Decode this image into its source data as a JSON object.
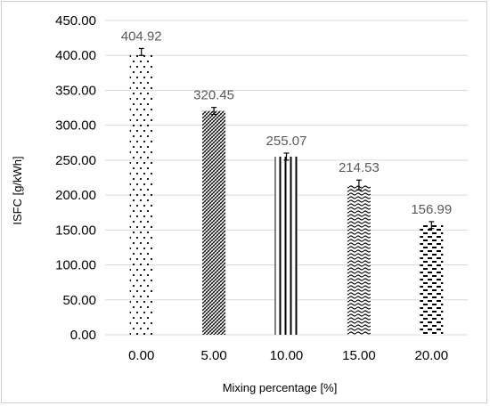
{
  "chart_data": {
    "type": "bar",
    "categories": [
      "0.00",
      "5.00",
      "10.00",
      "15.00",
      "20.00"
    ],
    "values": [
      404.92,
      320.45,
      255.07,
      214.53,
      156.99
    ],
    "value_labels": [
      "404.92",
      "320.45",
      "255.07",
      "214.53",
      "156.99"
    ],
    "error": [
      5,
      5,
      5,
      7,
      5
    ],
    "patterns": [
      "dots",
      "diagonal-dense",
      "vertical-lines",
      "waves",
      "dashes"
    ],
    "xlabel": "Mixing percentage [%]",
    "ylabel": "ISFC [g/kWh]",
    "ylim": [
      0,
      450
    ],
    "yticks": [
      "0.00",
      "50.00",
      "100.00",
      "150.00",
      "200.00",
      "250.00",
      "300.00",
      "350.00",
      "400.00",
      "450.00"
    ],
    "grid": true,
    "legend": "none",
    "colors": {
      "grid": "#d9d9d9",
      "bar_pattern": "#000000",
      "data_label": "#595959"
    }
  }
}
